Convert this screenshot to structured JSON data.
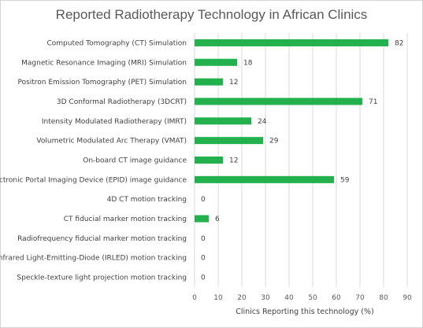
{
  "chart_data": {
    "type": "bar",
    "orientation": "horizontal",
    "title": "Reported Radiotherapy Technology in African Clinics",
    "xlabel": "Clinics Reporting this technology (%)",
    "ylabel": "",
    "xlim": [
      0,
      90
    ],
    "x_ticks": [
      "0",
      "10",
      "20",
      "30",
      "40",
      "50",
      "60",
      "70",
      "80",
      "90"
    ],
    "grid": true,
    "legend": "none",
    "bar_color": "#22b14c",
    "categories": [
      "Computed Tomography (CT) Simulation",
      "Magnetic Resonance Imaging (MRI) Simulation",
      "Positron Emission Tomography (PET) Simulation",
      "3D Conformal Radiotherapy (3DCRT)",
      "Intensity Modulated Radiotherapy (IMRT)",
      "Volumetric Modulated Arc Therapy (VMAT)",
      "On-board CT image guidance",
      "Electronic Portal Imaging Device (EPID) image guidance",
      "4D CT motion tracking",
      "CT fiducial marker motion tracking",
      "Radiofrequency fiducial marker motion tracking",
      "Infrared Light-Emitting-Diode (IRLED) motion tracking",
      "Speckle-texture light projection motion tracking"
    ],
    "values": [
      82,
      18,
      12,
      71,
      24,
      29,
      12,
      59,
      0,
      6,
      0,
      0,
      0
    ]
  }
}
